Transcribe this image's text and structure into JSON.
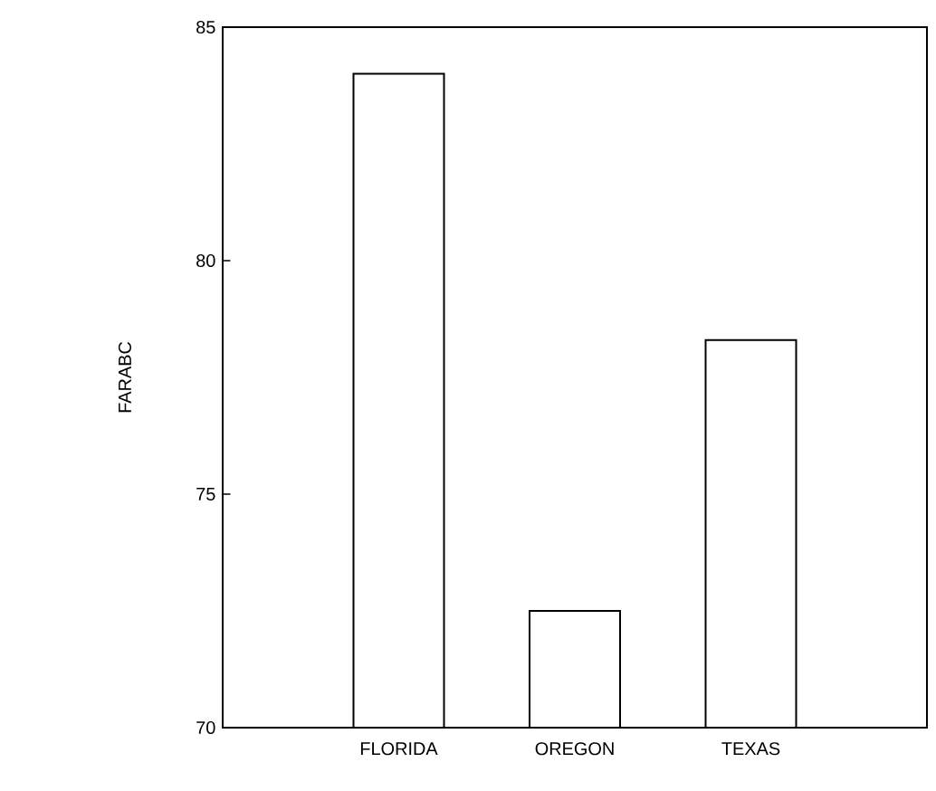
{
  "chart_data": {
    "type": "bar",
    "ylabel": "FARABC",
    "categories": [
      "FLORIDA",
      "OREGON",
      "TEXAS"
    ],
    "values": [
      84.0,
      72.5,
      78.3
    ],
    "color": "#ffffff",
    "ylim": [
      70,
      85
    ],
    "yticks": [
      70,
      75,
      80,
      85
    ],
    "grid": false
  }
}
